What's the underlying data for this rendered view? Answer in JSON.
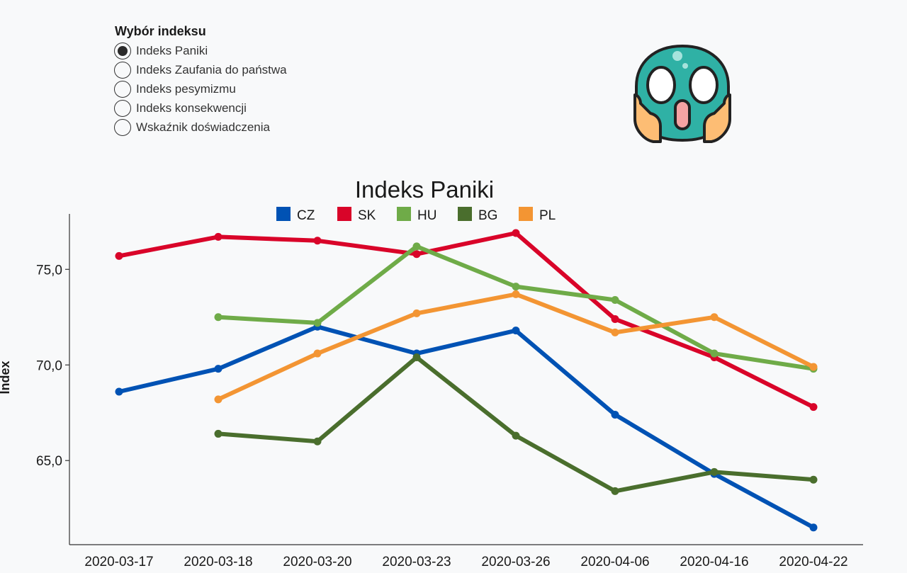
{
  "selector": {
    "title": "Wybór indeksu",
    "options": [
      {
        "label": "Indeks Paniki",
        "selected": true
      },
      {
        "label": "Indeks Zaufania do państwa",
        "selected": false
      },
      {
        "label": "Indeks pesymizmu",
        "selected": false
      },
      {
        "label": "Indeks konsekwencji",
        "selected": false
      },
      {
        "label": "Wskaźnik doświadczenia",
        "selected": false
      }
    ]
  },
  "emoji_icon": "shocked-face-icon",
  "chart_data": {
    "type": "line",
    "title": "Indeks Paniki",
    "xlabel": "",
    "ylabel": "Index",
    "categories": [
      "2020-03-17",
      "2020-03-18",
      "2020-03-20",
      "2020-03-23",
      "2020-03-26",
      "2020-04-06",
      "2020-04-16",
      "2020-04-22"
    ],
    "yticks": [
      {
        "value": 65,
        "label": "65,0"
      },
      {
        "value": 70,
        "label": "70,0"
      },
      {
        "value": 75,
        "label": "75,0"
      }
    ],
    "ylim": [
      60.6,
      77.9
    ],
    "grid": false,
    "legend_position": "top",
    "series": [
      {
        "name": "CZ",
        "color": "#0052b4",
        "values": [
          68.6,
          69.8,
          72.0,
          70.6,
          71.8,
          67.4,
          64.3,
          61.5
        ]
      },
      {
        "name": "SK",
        "color": "#d90429",
        "values": [
          75.7,
          76.7,
          76.5,
          75.8,
          76.9,
          72.4,
          70.4,
          67.8
        ]
      },
      {
        "name": "HU",
        "color": "#6fab48",
        "values": [
          null,
          72.5,
          72.2,
          76.2,
          74.1,
          73.4,
          70.6,
          69.8
        ]
      },
      {
        "name": "BG",
        "color": "#4a6e2d",
        "values": [
          null,
          66.4,
          66.0,
          70.4,
          66.3,
          63.4,
          64.4,
          64.0
        ]
      },
      {
        "name": "PL",
        "color": "#f39533",
        "values": [
          null,
          68.2,
          70.6,
          72.7,
          73.7,
          71.7,
          72.5,
          69.9
        ]
      }
    ]
  }
}
